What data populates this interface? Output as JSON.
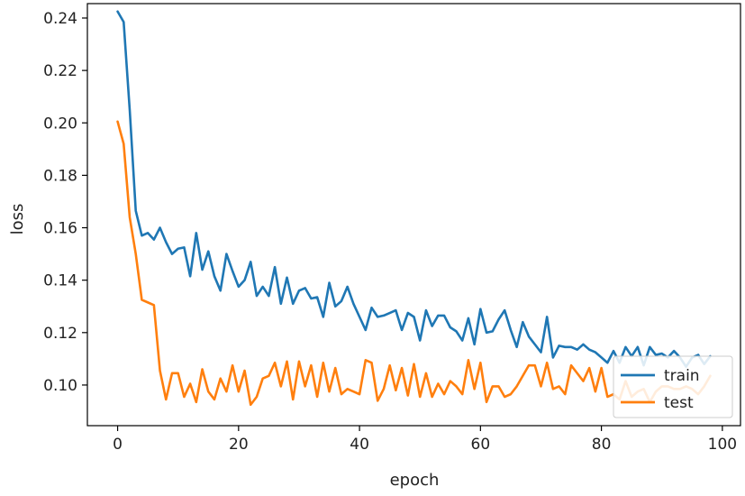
{
  "chart_data": {
    "type": "line",
    "title": "",
    "xlabel": "epoch",
    "ylabel": "loss",
    "xlim": [
      -5,
      103
    ],
    "ylim": [
      0.0845,
      0.2455
    ],
    "xticks": [
      0,
      20,
      40,
      60,
      80,
      100
    ],
    "yticks": [
      0.1,
      0.12,
      0.14,
      0.16,
      0.18,
      0.2,
      0.22,
      0.24
    ],
    "ytick_labels": [
      "0.10",
      "0.12",
      "0.14",
      "0.16",
      "0.18",
      "0.20",
      "0.22",
      "0.24"
    ],
    "xtick_labels": [
      "0",
      "20",
      "40",
      "60",
      "80",
      "100"
    ],
    "grid": false,
    "legend_position": "bottom-right",
    "series": [
      {
        "name": "train",
        "color": "#1f77b4",
        "x": [
          0,
          1,
          2,
          3,
          4,
          5,
          6,
          7,
          8,
          9,
          10,
          11,
          12,
          13,
          14,
          15,
          16,
          17,
          18,
          19,
          20,
          21,
          22,
          23,
          24,
          25,
          26,
          27,
          28,
          29,
          30,
          31,
          32,
          33,
          34,
          35,
          36,
          37,
          38,
          39,
          40,
          41,
          42,
          43,
          44,
          45,
          46,
          47,
          48,
          49,
          50,
          51,
          52,
          53,
          54,
          55,
          56,
          57,
          58,
          59,
          60,
          61,
          62,
          63,
          64,
          65,
          66,
          67,
          68,
          69,
          70,
          71,
          72,
          73,
          74,
          75,
          76,
          77,
          78,
          79,
          80,
          81,
          82,
          83,
          84,
          85,
          86,
          87,
          88,
          89,
          90,
          91,
          92,
          93,
          94,
          95,
          96,
          97,
          98
        ],
        "values": [
          0.2425,
          0.2385,
          0.205,
          0.1665,
          0.157,
          0.158,
          0.1555,
          0.16,
          0.1545,
          0.15,
          0.152,
          0.1525,
          0.1415,
          0.158,
          0.144,
          0.151,
          0.1415,
          0.136,
          0.15,
          0.1435,
          0.1375,
          0.14,
          0.147,
          0.134,
          0.1375,
          0.134,
          0.145,
          0.131,
          0.141,
          0.131,
          0.136,
          0.137,
          0.133,
          0.1335,
          0.126,
          0.139,
          0.13,
          0.132,
          0.1375,
          0.131,
          0.126,
          0.121,
          0.1295,
          0.126,
          0.1265,
          0.1275,
          0.1285,
          0.121,
          0.1275,
          0.126,
          0.117,
          0.1285,
          0.1225,
          0.1265,
          0.1265,
          0.122,
          0.1205,
          0.117,
          0.1255,
          0.1155,
          0.129,
          0.12,
          0.1205,
          0.125,
          0.1285,
          0.121,
          0.1145,
          0.124,
          0.1185,
          0.1155,
          0.1125,
          0.126,
          0.1105,
          0.115,
          0.1145,
          0.1145,
          0.1135,
          0.1155,
          0.1135,
          0.1125,
          0.1105,
          0.1085,
          0.113,
          0.1085,
          0.1145,
          0.111,
          0.1145,
          0.1075,
          0.1145,
          0.1115,
          0.112,
          0.1105,
          0.113,
          0.1105,
          0.107,
          0.1105,
          0.1115,
          0.108,
          0.111
        ]
      },
      {
        "name": "test",
        "color": "#ff7f0e",
        "x": [
          0,
          1,
          2,
          3,
          4,
          5,
          6,
          7,
          8,
          9,
          10,
          11,
          12,
          13,
          14,
          15,
          16,
          17,
          18,
          19,
          20,
          21,
          22,
          23,
          24,
          25,
          26,
          27,
          28,
          29,
          30,
          31,
          32,
          33,
          34,
          35,
          36,
          37,
          38,
          39,
          40,
          41,
          42,
          43,
          44,
          45,
          46,
          47,
          48,
          49,
          50,
          51,
          52,
          53,
          54,
          55,
          56,
          57,
          58,
          59,
          60,
          61,
          62,
          63,
          64,
          65,
          66,
          67,
          68,
          69,
          70,
          71,
          72,
          73,
          74,
          75,
          76,
          77,
          78,
          79,
          80,
          81,
          82,
          83,
          84,
          85,
          86,
          87,
          88,
          89,
          90,
          91,
          92,
          93,
          94,
          95,
          96,
          97,
          98
        ],
        "values": [
          0.2005,
          0.192,
          0.164,
          0.15,
          0.1325,
          0.1315,
          0.1305,
          0.1055,
          0.0945,
          0.1045,
          0.1045,
          0.0955,
          0.1005,
          0.0935,
          0.106,
          0.0975,
          0.0945,
          0.1025,
          0.0975,
          0.1075,
          0.0975,
          0.1055,
          0.0925,
          0.0955,
          0.1025,
          0.1035,
          0.1085,
          0.0995,
          0.109,
          0.0945,
          0.109,
          0.0995,
          0.1075,
          0.0955,
          0.1085,
          0.0975,
          0.1065,
          0.0965,
          0.0985,
          0.0975,
          0.0965,
          0.1095,
          0.1085,
          0.094,
          0.0985,
          0.1075,
          0.098,
          0.1065,
          0.096,
          0.108,
          0.0955,
          0.1045,
          0.0955,
          0.1005,
          0.0965,
          0.1015,
          0.0995,
          0.0965,
          0.1095,
          0.0985,
          0.1085,
          0.0935,
          0.0995,
          0.0995,
          0.0955,
          0.0965,
          0.0995,
          0.1035,
          0.1075,
          0.1075,
          0.0995,
          0.1085,
          0.0985,
          0.0995,
          0.0965,
          0.1075,
          0.1045,
          0.1015,
          0.1065,
          0.0975,
          0.1065,
          0.0955,
          0.0965,
          0.0945,
          0.1015,
          0.0955,
          0.0975,
          0.0985,
          0.0935,
          0.0975,
          0.0995,
          0.0995,
          0.0985,
          0.0985,
          0.0995,
          0.0985,
          0.0965,
          0.0995,
          0.1035
        ]
      }
    ]
  }
}
